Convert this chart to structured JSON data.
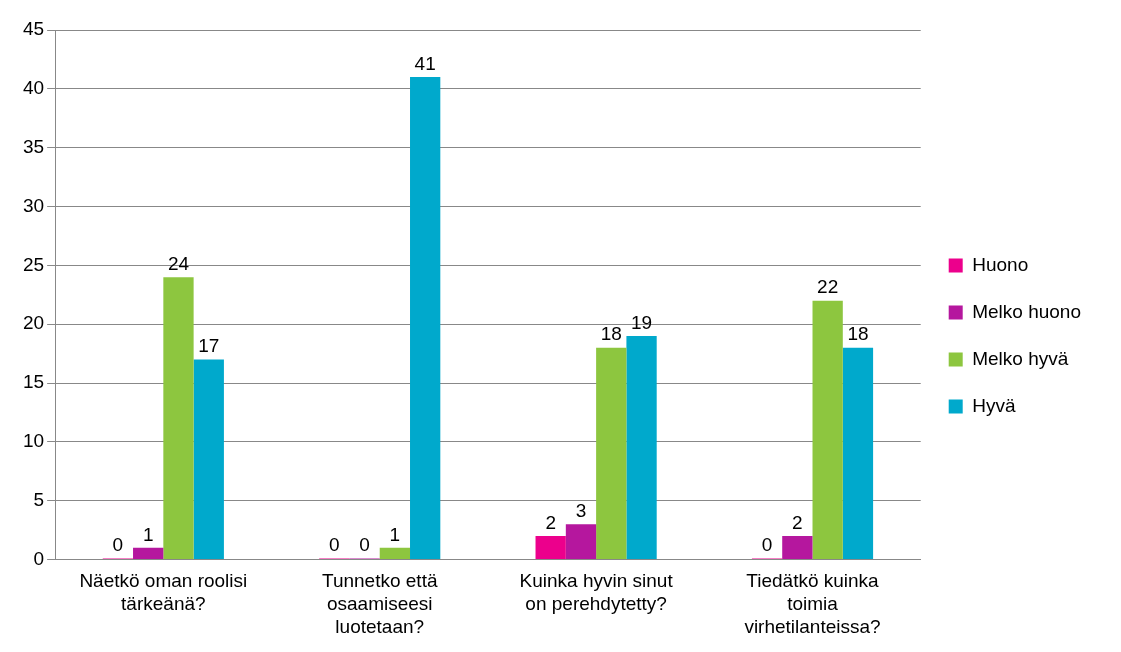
{
  "chart_data": {
    "type": "bar",
    "categories": [
      "Näetkö oman roolisi tärkeänä?",
      "Tunnetko että osaamiseesi luotetaan?",
      "Kuinka hyvin sinut on perehdytetty?",
      "Tiedätkö kuinka toimia virhetilanteissa?"
    ],
    "series": [
      {
        "name": "Huono",
        "color": "#ec008c",
        "values": [
          0,
          0,
          2,
          0
        ]
      },
      {
        "name": "Melko huono",
        "color": "#b5179e",
        "values": [
          1,
          0,
          3,
          2
        ]
      },
      {
        "name": "Melko hyvä",
        "color": "#8dc63f",
        "values": [
          24,
          1,
          18,
          22
        ]
      },
      {
        "name": "Hyvä",
        "color": "#00a9cc",
        "values": [
          17,
          41,
          19,
          18
        ]
      }
    ],
    "ylim": [
      0,
      45
    ],
    "yticks": [
      0,
      5,
      10,
      15,
      20,
      25,
      30,
      35,
      40,
      45
    ],
    "grid": "y",
    "legend": "right",
    "data_labels": true
  }
}
